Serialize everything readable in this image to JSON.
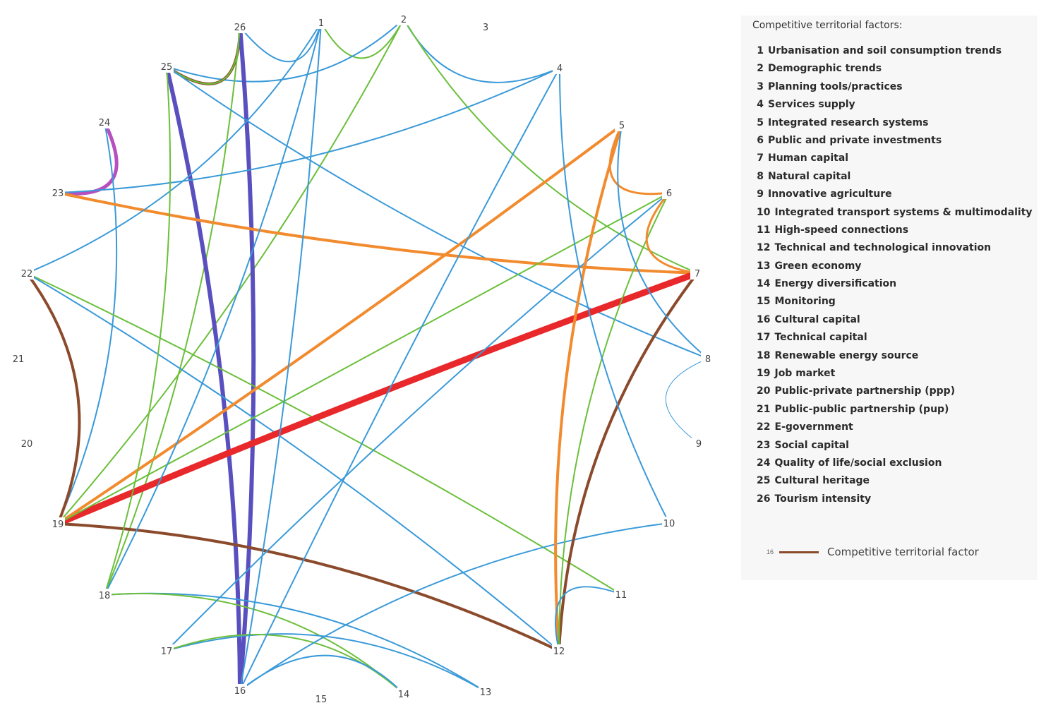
{
  "legend": {
    "title": "Competitive territorial factors:",
    "items": [
      {
        "num": "1",
        "label": "Urbanisation and soil consumption trends"
      },
      {
        "num": "2",
        "label": "Demographic trends"
      },
      {
        "num": "3",
        "label": "Planning tools/practices"
      },
      {
        "num": "4",
        "label": "Services supply"
      },
      {
        "num": "5",
        "label": "Integrated research systems"
      },
      {
        "num": "6",
        "label": "Public and private investments"
      },
      {
        "num": "7",
        "label": "Human capital"
      },
      {
        "num": "8",
        "label": "Natural capital"
      },
      {
        "num": "9",
        "label": "Innovative agriculture"
      },
      {
        "num": "10",
        "label": "Integrated transport systems & multimodality"
      },
      {
        "num": "11",
        "label": "High-speed connections"
      },
      {
        "num": "12",
        "label": "Technical and technological innovation"
      },
      {
        "num": "13",
        "label": "Green economy"
      },
      {
        "num": "14",
        "label": "Energy diversification"
      },
      {
        "num": "15",
        "label": "Monitoring"
      },
      {
        "num": "16",
        "label": "Cultural capital"
      },
      {
        "num": "17",
        "label": "Technical capital"
      },
      {
        "num": "18",
        "label": "Renewable energy source"
      },
      {
        "num": "19",
        "label": "Job market"
      },
      {
        "num": "20",
        "label": "Public-private partnership (ppp)"
      },
      {
        "num": "21",
        "label": "Public-public partnership (pup)"
      },
      {
        "num": "22",
        "label": "E-government"
      },
      {
        "num": "23",
        "label": "Social capital"
      },
      {
        "num": "24",
        "label": "Quality of life/social exclusion"
      },
      {
        "num": "25",
        "label": "Cultural heritage"
      },
      {
        "num": "26",
        "label": "Tourism intensity"
      }
    ],
    "key_small": "16",
    "key_label": "Competitive territorial factor"
  },
  "colors": {
    "blue": "#3a9ad9",
    "green": "#6bbf3a",
    "orange": "#f28a2e",
    "brown": "#8b4a2b",
    "purple": "#5a4fbf",
    "red": "#e8282a",
    "magenta": "#b64fc0"
  },
  "edges": [
    {
      "from": 26,
      "to": 1,
      "color": "blue",
      "weight": 2
    },
    {
      "from": 1,
      "to": 2,
      "color": "green",
      "weight": 2
    },
    {
      "from": 2,
      "to": 4,
      "color": "blue",
      "weight": 2
    },
    {
      "from": 2,
      "to": 7,
      "color": "green",
      "weight": 2
    },
    {
      "from": 2,
      "to": 25,
      "color": "blue",
      "weight": 2
    },
    {
      "from": 2,
      "to": 19,
      "color": "green",
      "weight": 2
    },
    {
      "from": 26,
      "to": 25,
      "color": "brown",
      "weight": 4
    },
    {
      "from": 26,
      "to": 25,
      "color": "green",
      "weight": 2
    },
    {
      "from": 26,
      "to": 16,
      "color": "purple",
      "weight": 6
    },
    {
      "from": 26,
      "to": 18,
      "color": "green",
      "weight": 2
    },
    {
      "from": 25,
      "to": 16,
      "color": "purple",
      "weight": 6
    },
    {
      "from": 25,
      "to": 8,
      "color": "blue",
      "weight": 2
    },
    {
      "from": 24,
      "to": 23,
      "color": "magenta",
      "weight": 5
    },
    {
      "from": 24,
      "to": 19,
      "color": "blue",
      "weight": 2
    },
    {
      "from": 23,
      "to": 4,
      "color": "blue",
      "weight": 2
    },
    {
      "from": 23,
      "to": 7,
      "color": "orange",
      "weight": 4
    },
    {
      "from": 22,
      "to": 19,
      "color": "brown",
      "weight": 4
    },
    {
      "from": 22,
      "to": 11,
      "color": "green",
      "weight": 2
    },
    {
      "from": 22,
      "to": 12,
      "color": "blue",
      "weight": 2
    },
    {
      "from": 22,
      "to": 1,
      "color": "blue",
      "weight": 2
    },
    {
      "from": 19,
      "to": 7,
      "color": "red",
      "weight": 9
    },
    {
      "from": 19,
      "to": 5,
      "color": "orange",
      "weight": 4
    },
    {
      "from": 19,
      "to": 6,
      "color": "green",
      "weight": 2
    },
    {
      "from": 19,
      "to": 12,
      "color": "brown",
      "weight": 4
    },
    {
      "from": 18,
      "to": 1,
      "color": "blue",
      "weight": 2
    },
    {
      "from": 18,
      "to": 25,
      "color": "green",
      "weight": 2
    },
    {
      "from": 18,
      "to": 13,
      "color": "blue",
      "weight": 2
    },
    {
      "from": 18,
      "to": 14,
      "color": "green",
      "weight": 2
    },
    {
      "from": 17,
      "to": 13,
      "color": "blue",
      "weight": 2
    },
    {
      "from": 17,
      "to": 14,
      "color": "green",
      "weight": 2
    },
    {
      "from": 17,
      "to": 6,
      "color": "blue",
      "weight": 2
    },
    {
      "from": 16,
      "to": 4,
      "color": "blue",
      "weight": 2
    },
    {
      "from": 16,
      "to": 1,
      "color": "blue",
      "weight": 2
    },
    {
      "from": 16,
      "to": 10,
      "color": "blue",
      "weight": 2
    },
    {
      "from": 16,
      "to": 14,
      "color": "blue",
      "weight": 2
    },
    {
      "from": 12,
      "to": 5,
      "color": "orange",
      "weight": 4
    },
    {
      "from": 12,
      "to": 7,
      "color": "brown",
      "weight": 4
    },
    {
      "from": 12,
      "to": 6,
      "color": "green",
      "weight": 2
    },
    {
      "from": 12,
      "to": 11,
      "color": "blue",
      "weight": 2
    },
    {
      "from": 5,
      "to": 6,
      "color": "orange",
      "weight": 3
    },
    {
      "from": 6,
      "to": 7,
      "color": "orange",
      "weight": 3
    },
    {
      "from": 4,
      "to": 10,
      "color": "blue",
      "weight": 2
    },
    {
      "from": 5,
      "to": 8,
      "color": "blue",
      "weight": 2
    },
    {
      "from": 8,
      "to": 9,
      "color": "blue",
      "weight": 1
    }
  ]
}
